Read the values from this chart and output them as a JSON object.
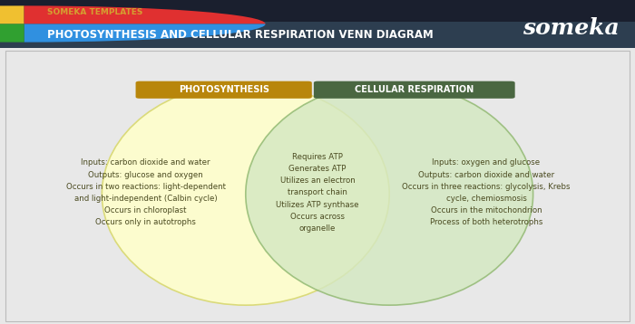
{
  "header_dark_color": "#1a1f2e",
  "header_mid_color": "#2d3e50",
  "header_title": "PHOTOSYNTHESIS AND CELLULAR RESPIRATION VENN DIAGRAM",
  "header_subtitle": "SOMEKA TEMPLATES",
  "brand": "someka",
  "main_bg_color": "#e8e8e8",
  "chart_bg_color": "#ffffff",
  "photosynthesis_label": "PHOTOSYNTHESIS",
  "photosynthesis_label_bg": "#b8860b",
  "respiration_label": "CELLULAR RESPIRATION",
  "respiration_label_bg": "#4a6741",
  "left_circle_color": "#ffffcc",
  "left_circle_edge": "#d8d870",
  "right_circle_color": "#d4e8c2",
  "right_circle_edge": "#90b870",
  "text_color": "#4a4a20",
  "left_text": "Inputs: carbon dioxide and water\nOutputs: glucose and oxygen\nOccurs in two reactions: light-dependent\nand light-independent (Calbin cycle)\nOccurs in chloroplast\nOccurs only in autotrophs",
  "center_text": "Requires ATP\nGenerates ATP\nUtilizes an electron\ntransport chain\nUtilizes ATP synthase\nOccurs across\norganelle",
  "right_text": "Inputs: oxygen and glucose\nOutputs: carbon dioxide and water\nOccurs in three reactions: glycolysis, Krebs\ncycle, chemiosmosis\nOccurs in the mitochondrion\nProcess of both heterotrophs",
  "label_text_color": "#ffffff",
  "subtitle_color": "#d4a030",
  "font_size_text": 6.2,
  "font_size_label": 7.0,
  "font_size_header_title": 8.5,
  "font_size_subtitle": 6.5,
  "font_size_brand": 18,
  "logo_wedge_colors": [
    "#f0c030",
    "#e03030",
    "#3090e0",
    "#30a030"
  ],
  "logo_wedge_angles": [
    90,
    0,
    270,
    180
  ]
}
